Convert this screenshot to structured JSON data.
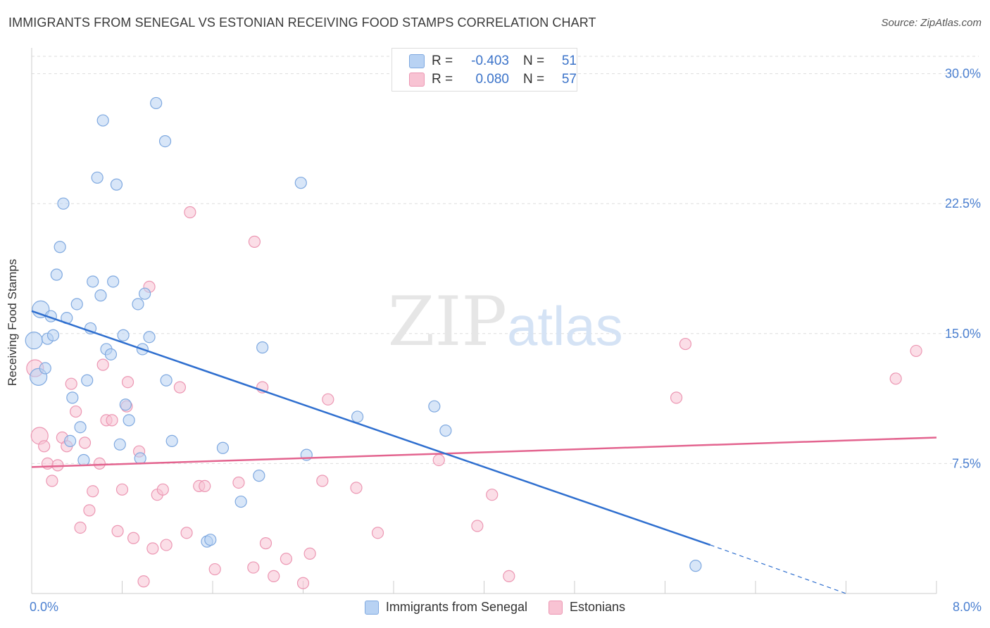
{
  "title": "IMMIGRANTS FROM SENEGAL VS ESTONIAN RECEIVING FOOD STAMPS CORRELATION CHART",
  "source": "Source: ZipAtlas.com",
  "watermark": {
    "zip": "ZIP",
    "atlas": "atlas"
  },
  "legend_top": [
    {
      "r_label": "R =",
      "r_value": "-0.403",
      "n_label": "N =",
      "n_value": "51"
    },
    {
      "r_label": "R =",
      "r_value": "0.080",
      "n_label": "N =",
      "n_value": "57"
    }
  ],
  "legend_bottom": [
    {
      "label": "Immigrants from Senegal"
    },
    {
      "label": "Estonians"
    }
  ],
  "colors": {
    "blue_fill": "#b8d2f3",
    "blue_stroke": "#7fa9e0",
    "blue_line": "#2f6fcf",
    "pink_fill": "#f8c3d3",
    "pink_stroke": "#ec97b3",
    "pink_line": "#e3648f",
    "tick_label": "#4a7fd0",
    "grid": "#dddddd"
  },
  "chart_data": {
    "type": "scatter",
    "title": "IMMIGRANTS FROM SENEGAL VS ESTONIAN RECEIVING FOOD STAMPS CORRELATION CHART",
    "xlabel": "",
    "ylabel": "Receiving Food Stamps",
    "xlim": [
      0,
      8
    ],
    "ylim": [
      0,
      31
    ],
    "x_tick_labels": [
      "0.0%",
      "8.0%"
    ],
    "y_ticks": [
      7.5,
      15.0,
      22.5,
      30.0
    ],
    "y_tick_labels": [
      "7.5%",
      "15.0%",
      "22.5%",
      "30.0%"
    ],
    "grid": "horizontal dashed",
    "legend_placement": "top-center",
    "series": [
      {
        "name": "Immigrants from Senegal",
        "r": -0.403,
        "n": 51,
        "trend": {
          "x0": 0.0,
          "y0": 16.3,
          "x1": 6.0,
          "y1": 2.8,
          "dash_to_x": 7.2,
          "dash_to_y": 0.0
        },
        "points": [
          [
            0.02,
            14.6
          ],
          [
            0.08,
            16.4
          ],
          [
            0.06,
            12.5
          ],
          [
            0.12,
            13.0
          ],
          [
            0.14,
            14.7
          ],
          [
            0.17,
            16.0
          ],
          [
            0.19,
            14.9
          ],
          [
            0.22,
            18.4
          ],
          [
            0.25,
            20.0
          ],
          [
            0.28,
            22.5
          ],
          [
            0.31,
            15.9
          ],
          [
            0.34,
            8.8
          ],
          [
            0.36,
            11.3
          ],
          [
            0.4,
            16.7
          ],
          [
            0.43,
            9.6
          ],
          [
            0.46,
            7.7
          ],
          [
            0.49,
            12.3
          ],
          [
            0.52,
            15.3
          ],
          [
            0.54,
            18.0
          ],
          [
            0.58,
            24.0
          ],
          [
            0.61,
            17.2
          ],
          [
            0.63,
            27.3
          ],
          [
            0.66,
            14.1
          ],
          [
            0.7,
            13.8
          ],
          [
            0.72,
            18.0
          ],
          [
            0.75,
            23.6
          ],
          [
            0.78,
            8.6
          ],
          [
            0.81,
            14.9
          ],
          [
            0.83,
            10.9
          ],
          [
            0.86,
            10.0
          ],
          [
            0.94,
            16.7
          ],
          [
            0.96,
            7.8
          ],
          [
            0.98,
            14.1
          ],
          [
            1.0,
            17.3
          ],
          [
            1.04,
            14.8
          ],
          [
            1.1,
            28.3
          ],
          [
            1.18,
            26.1
          ],
          [
            1.19,
            12.3
          ],
          [
            1.24,
            8.8
          ],
          [
            1.55,
            3.0
          ],
          [
            1.58,
            3.1
          ],
          [
            1.69,
            8.4
          ],
          [
            1.85,
            5.3
          ],
          [
            2.01,
            6.8
          ],
          [
            2.04,
            14.2
          ],
          [
            2.38,
            23.7
          ],
          [
            2.43,
            8.0
          ],
          [
            2.88,
            10.2
          ],
          [
            3.56,
            10.8
          ],
          [
            3.66,
            9.4
          ],
          [
            5.87,
            1.6
          ]
        ]
      },
      {
        "name": "Estonians",
        "r": 0.08,
        "n": 57,
        "trend": {
          "x0": 0.0,
          "y0": 7.3,
          "x1": 8.0,
          "y1": 9.0
        },
        "points": [
          [
            0.03,
            13.0
          ],
          [
            0.07,
            9.1
          ],
          [
            0.11,
            8.5
          ],
          [
            0.14,
            7.5
          ],
          [
            0.18,
            6.5
          ],
          [
            0.23,
            7.4
          ],
          [
            0.27,
            9.0
          ],
          [
            0.31,
            8.5
          ],
          [
            0.35,
            12.1
          ],
          [
            0.39,
            10.5
          ],
          [
            0.43,
            3.8
          ],
          [
            0.47,
            8.7
          ],
          [
            0.51,
            4.8
          ],
          [
            0.54,
            5.9
          ],
          [
            0.6,
            7.5
          ],
          [
            0.63,
            13.2
          ],
          [
            0.66,
            10.0
          ],
          [
            0.71,
            10.0
          ],
          [
            0.76,
            3.6
          ],
          [
            0.8,
            6.0
          ],
          [
            0.84,
            10.8
          ],
          [
            0.85,
            12.2
          ],
          [
            0.9,
            3.2
          ],
          [
            0.95,
            8.2
          ],
          [
            0.99,
            0.7
          ],
          [
            1.04,
            17.7
          ],
          [
            1.07,
            2.6
          ],
          [
            1.11,
            5.7
          ],
          [
            1.16,
            6.0
          ],
          [
            1.19,
            2.8
          ],
          [
            1.31,
            11.9
          ],
          [
            1.37,
            3.5
          ],
          [
            1.4,
            22.0
          ],
          [
            1.48,
            6.2
          ],
          [
            1.53,
            6.2
          ],
          [
            1.62,
            1.4
          ],
          [
            1.83,
            6.4
          ],
          [
            1.96,
            1.5
          ],
          [
            1.97,
            20.3
          ],
          [
            2.04,
            11.9
          ],
          [
            2.07,
            2.9
          ],
          [
            2.14,
            1.0
          ],
          [
            2.25,
            2.0
          ],
          [
            2.4,
            0.6
          ],
          [
            2.46,
            2.3
          ],
          [
            2.57,
            6.5
          ],
          [
            2.62,
            11.2
          ],
          [
            2.87,
            6.1
          ],
          [
            3.06,
            3.5
          ],
          [
            3.6,
            7.7
          ],
          [
            3.94,
            3.9
          ],
          [
            4.07,
            5.7
          ],
          [
            4.22,
            1.0
          ],
          [
            5.7,
            11.3
          ],
          [
            5.78,
            14.4
          ],
          [
            7.64,
            12.4
          ],
          [
            7.82,
            14.0
          ]
        ]
      }
    ]
  }
}
